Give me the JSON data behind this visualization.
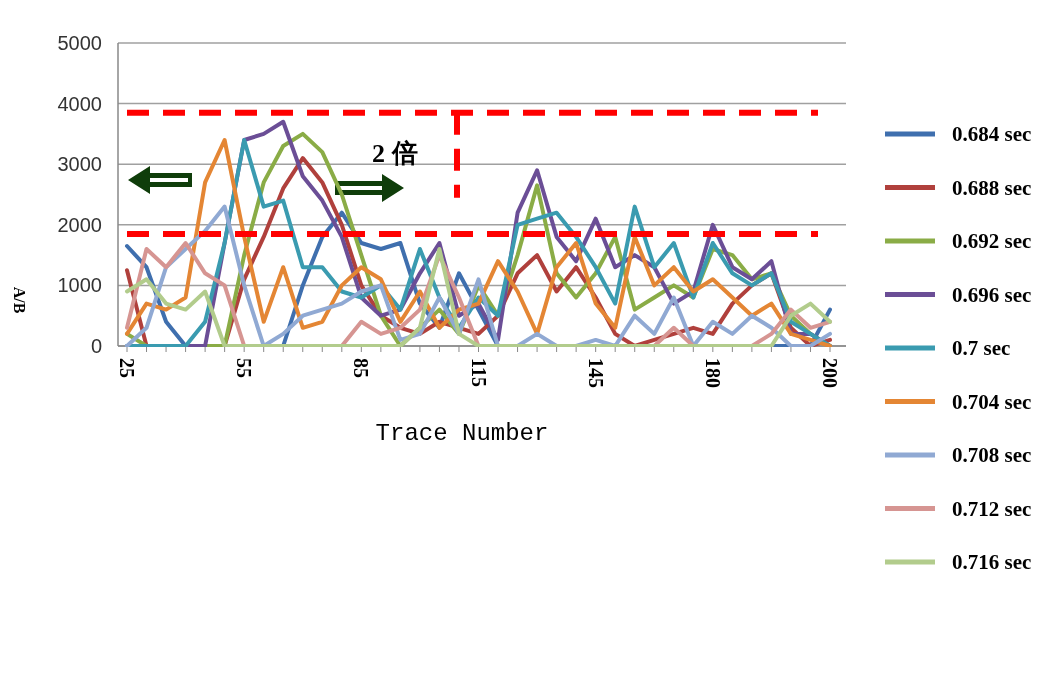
{
  "chart_data": {
    "type": "line",
    "xlabel": "Trace Number",
    "ylabel": "A/B",
    "ylim": [
      0,
      5000
    ],
    "yticks": [
      0,
      1000,
      2000,
      3000,
      4000,
      5000
    ],
    "grid": "y",
    "legend": "right",
    "marker": "none",
    "line_style": "solid",
    "categories": [
      "25",
      null,
      null,
      null,
      null,
      null,
      "55",
      null,
      null,
      null,
      null,
      null,
      "85",
      null,
      null,
      null,
      null,
      null,
      "115",
      null,
      null,
      null,
      null,
      null,
      "145",
      null,
      null,
      null,
      null,
      null,
      "180",
      null,
      null,
      null,
      null,
      null,
      "200"
    ],
    "annotations": [
      "2 倍"
    ],
    "ref_lines": [
      {
        "axis": "y",
        "value": 1850,
        "color": "#ff0000",
        "line_style": "dashed"
      },
      {
        "axis": "y",
        "value": 3850,
        "color": "#ff0000",
        "line_style": "dashed"
      }
    ],
    "series": [
      {
        "name": "0.684 sec",
        "color": "#3f6fae",
        "values": [
          1650,
          1300,
          400,
          0,
          0,
          0,
          0,
          0,
          0,
          1000,
          1800,
          2200,
          1700,
          1600,
          1700,
          700,
          300,
          1200,
          600,
          0,
          0,
          0,
          0,
          0,
          0,
          0,
          0,
          0,
          0,
          0,
          0,
          0,
          0,
          0,
          0,
          0,
          600
        ]
      },
      {
        "name": "0.688 sec",
        "color": "#b0403c",
        "values": [
          1250,
          0,
          0,
          0,
          0,
          0,
          1100,
          1800,
          2600,
          3100,
          2700,
          2000,
          1000,
          500,
          300,
          200,
          400,
          300,
          200,
          500,
          1200,
          1500,
          900,
          1300,
          800,
          200,
          0,
          100,
          200,
          300,
          200,
          700,
          1000,
          1200,
          300,
          0,
          100
        ]
      },
      {
        "name": "0.692 sec",
        "color": "#8aac46",
        "values": [
          200,
          0,
          0,
          0,
          0,
          0,
          1500,
          2700,
          3300,
          3500,
          3200,
          2500,
          1500,
          500,
          0,
          300,
          600,
          200,
          1000,
          500,
          1500,
          2650,
          1200,
          800,
          1200,
          1800,
          600,
          800,
          1000,
          800,
          1600,
          1500,
          1100,
          1200,
          500,
          200,
          0
        ]
      },
      {
        "name": "0.696 sec",
        "color": "#6b4e96",
        "values": [
          0,
          0,
          0,
          0,
          0,
          1700,
          3400,
          3500,
          3700,
          2800,
          2400,
          1800,
          800,
          500,
          600,
          1200,
          1700,
          500,
          700,
          100,
          2200,
          2900,
          1800,
          1400,
          2100,
          1300,
          1500,
          1300,
          700,
          900,
          2000,
          1300,
          1100,
          1400,
          200,
          200,
          0
        ]
      },
      {
        "name": "0.7 sec",
        "color": "#3a9bb0",
        "values": [
          0,
          0,
          0,
          0,
          400,
          1700,
          3400,
          2300,
          2400,
          1300,
          1300,
          900,
          800,
          1000,
          600,
          1600,
          800,
          300,
          800,
          500,
          2000,
          2100,
          2200,
          1800,
          1300,
          700,
          2300,
          1300,
          1700,
          800,
          1700,
          1200,
          1000,
          1200,
          400,
          200,
          0
        ]
      },
      {
        "name": "0.704 sec",
        "color": "#e48634",
        "values": [
          200,
          700,
          600,
          800,
          2700,
          3400,
          1800,
          400,
          1300,
          300,
          400,
          1000,
          1300,
          1100,
          400,
          900,
          300,
          600,
          700,
          1400,
          900,
          200,
          1300,
          1700,
          700,
          300,
          1800,
          1000,
          1300,
          900,
          1100,
          800,
          500,
          700,
          200,
          100,
          0
        ]
      },
      {
        "name": "0.708 sec",
        "color": "#90a9d3",
        "values": [
          0,
          300,
          1300,
          1600,
          1900,
          2300,
          1000,
          0,
          200,
          500,
          600,
          700,
          900,
          1000,
          100,
          200,
          800,
          200,
          1100,
          0,
          0,
          200,
          0,
          0,
          100,
          0,
          500,
          200,
          800,
          0,
          400,
          200,
          500,
          300,
          0,
          0,
          200
        ]
      },
      {
        "name": "0.712 sec",
        "color": "#d69592",
        "values": [
          300,
          1600,
          1300,
          1700,
          1200,
          1000,
          0,
          0,
          0,
          0,
          0,
          0,
          400,
          200,
          300,
          600,
          1500,
          800,
          0,
          0,
          0,
          0,
          0,
          0,
          0,
          0,
          0,
          0,
          300,
          0,
          0,
          0,
          0,
          200,
          600,
          300,
          400
        ]
      },
      {
        "name": "0.716 sec",
        "color": "#b2cc8c",
        "values": [
          900,
          1100,
          700,
          600,
          900,
          0,
          0,
          0,
          0,
          0,
          0,
          0,
          0,
          0,
          0,
          300,
          1600,
          200,
          0,
          0,
          0,
          0,
          0,
          0,
          0,
          0,
          0,
          0,
          0,
          0,
          0,
          0,
          0,
          0,
          500,
          700,
          400
        ]
      }
    ]
  }
}
